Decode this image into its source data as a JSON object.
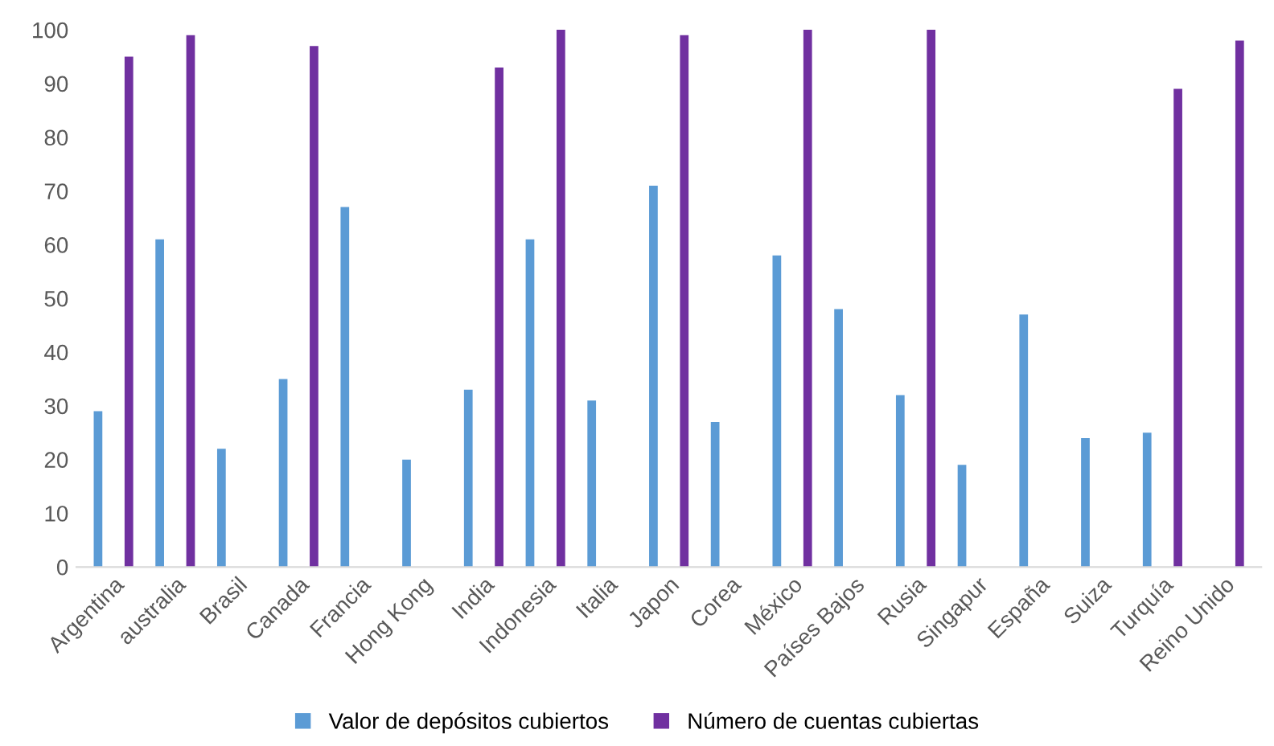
{
  "chart_data": {
    "type": "bar",
    "categories": [
      "Argentina",
      "australia",
      "Brasil",
      "Canada",
      "Francia",
      "Hong Kong",
      "India",
      "Indonesia",
      "Italia",
      "Japon",
      "Corea",
      "México",
      "Países Bajos",
      "Rusia",
      "Singapur",
      "España",
      "Suiza",
      "Turquía",
      "Reino Unido"
    ],
    "series": [
      {
        "name": "Valor de depósitos cubiertos",
        "color": "#5b9bd5",
        "values": [
          29,
          61,
          22,
          35,
          67,
          20,
          33,
          61,
          31,
          71,
          27,
          58,
          48,
          32,
          19,
          47,
          24,
          25,
          null
        ]
      },
      {
        "name": "Número de cuentas cubiertas",
        "color": "#7030a0",
        "values": [
          95,
          99,
          null,
          97,
          null,
          null,
          93,
          100,
          null,
          99,
          null,
          100,
          null,
          100,
          null,
          null,
          null,
          89,
          98
        ]
      }
    ],
    "ylim": [
      0,
      100
    ],
    "yticks": [
      0,
      10,
      20,
      30,
      40,
      50,
      60,
      70,
      80,
      90,
      100
    ],
    "grid": false,
    "legend": "bottom"
  }
}
